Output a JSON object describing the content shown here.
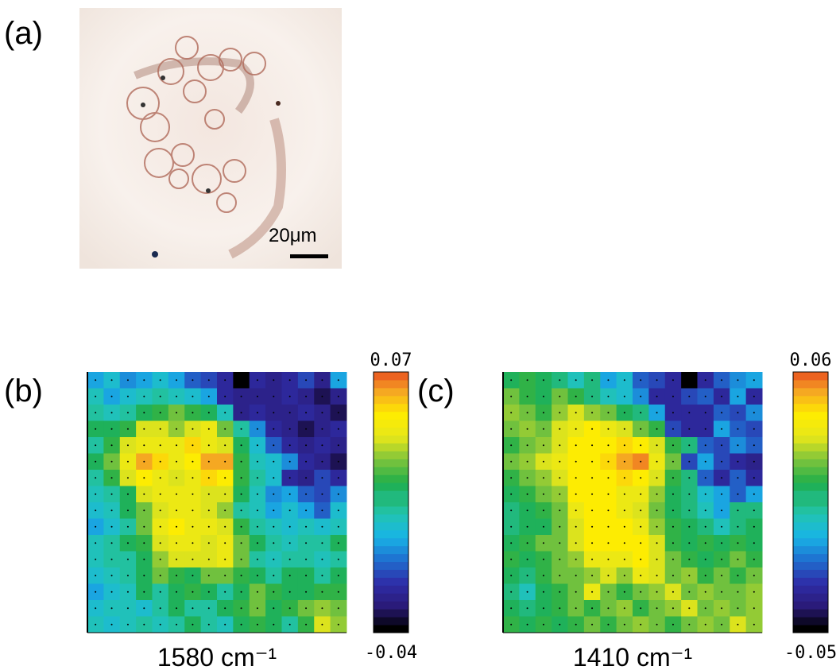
{
  "panel_a": {
    "label": "(a)",
    "scale_bar": "20μm"
  },
  "chart_data": [
    {
      "type": "heatmap",
      "label": "(b)",
      "xlabel": "1580 cm⁻¹",
      "clim": [
        -0.04,
        0.07
      ],
      "cticks": [
        -0.04,
        0.07
      ],
      "colors": [
        "#000000",
        "#2a1a78",
        "#2e2ea8",
        "#1f6fd0",
        "#18b4e6",
        "#22c4b0",
        "#1fae4a",
        "#7cc43c",
        "#e6e61a",
        "#ffec00",
        "#f5a623",
        "#e8401f"
      ],
      "values": [
        [
          0,
          0.005,
          -0.005,
          0,
          0.005,
          0,
          -0.01,
          -0.015,
          -0.02,
          -0.04,
          -0.02,
          -0.025,
          -0.02,
          -0.015,
          -0.025,
          0
        ],
        [
          0.01,
          0,
          0.005,
          0.01,
          0.015,
          0.01,
          0.005,
          0,
          -0.02,
          -0.025,
          -0.025,
          -0.025,
          -0.02,
          -0.025,
          -0.03,
          -0.025
        ],
        [
          0.015,
          0.01,
          0.015,
          0.02,
          0.025,
          0.03,
          0.025,
          0.02,
          0.01,
          -0.025,
          -0.02,
          -0.025,
          -0.025,
          -0.02,
          -0.025,
          -0.03
        ],
        [
          0.02,
          0.02,
          0.025,
          0.04,
          0.04,
          0.035,
          0.04,
          0.045,
          0.03,
          0.015,
          -0.005,
          -0.02,
          -0.025,
          -0.03,
          -0.025,
          -0.02
        ],
        [
          0.015,
          0.025,
          0.04,
          0.045,
          0.045,
          0.045,
          0.055,
          0.045,
          0.04,
          0.02,
          0.005,
          -0.01,
          -0.02,
          -0.025,
          -0.02,
          -0.025
        ],
        [
          0.02,
          0.03,
          0.045,
          0.06,
          0.055,
          0.045,
          0.05,
          0.06,
          0.06,
          0.025,
          0.01,
          0.005,
          -0.005,
          -0.02,
          -0.025,
          -0.03
        ],
        [
          0.015,
          0.025,
          0.04,
          0.05,
          0.045,
          0.04,
          0.045,
          0.055,
          0.05,
          0.025,
          0.015,
          0.005,
          -0.02,
          -0.025,
          -0.015,
          -0.02
        ],
        [
          0.01,
          0.015,
          0.02,
          0.04,
          0.045,
          0.045,
          0.045,
          0.04,
          0.04,
          0.02,
          0.01,
          -0.005,
          0,
          -0.01,
          -0.015,
          -0.005
        ],
        [
          0.005,
          0.01,
          0.02,
          0.03,
          0.04,
          0.045,
          0.045,
          0.04,
          0.035,
          0.015,
          0.01,
          0,
          0.005,
          0,
          -0.01,
          0.005
        ],
        [
          0,
          0.005,
          0.015,
          0.03,
          0.045,
          0.05,
          0.045,
          0.045,
          0.04,
          0.025,
          0.015,
          0.01,
          0.005,
          0.01,
          0.005,
          0.01
        ],
        [
          0.01,
          0.015,
          0.02,
          0.025,
          0.04,
          0.045,
          0.045,
          0.04,
          0.045,
          0.03,
          0.02,
          0.015,
          0.01,
          0.015,
          0.015,
          0.02
        ],
        [
          0.01,
          0.015,
          0.015,
          0.02,
          0.035,
          0.04,
          0.04,
          0.04,
          0.045,
          0.03,
          0.015,
          0.01,
          0.015,
          0.015,
          0.01,
          0.015
        ],
        [
          0.005,
          0.01,
          0.015,
          0.02,
          0.03,
          0.025,
          0.02,
          0.03,
          0.03,
          0.025,
          0.02,
          0.015,
          0.02,
          0.02,
          0.015,
          0.02
        ],
        [
          0,
          0.005,
          0.01,
          0.02,
          0.015,
          0.02,
          0.025,
          0.02,
          0.015,
          0.02,
          0.03,
          0.025,
          0.02,
          0.02,
          0.025,
          0.025
        ],
        [
          0.005,
          0.01,
          0.01,
          0.005,
          0.015,
          0.02,
          0.015,
          0.015,
          0.02,
          0.025,
          0.03,
          0.02,
          0.025,
          0.03,
          0.035,
          0.03
        ],
        [
          0.01,
          0.005,
          0.01,
          0.015,
          0.01,
          0.015,
          0.02,
          0.015,
          0.01,
          0.02,
          0.025,
          0.02,
          0.015,
          0.025,
          0.04,
          0.035
        ]
      ]
    },
    {
      "type": "heatmap",
      "label": "(c)",
      "xlabel": "1410 cm⁻¹",
      "clim": [
        -0.05,
        0.06
      ],
      "cticks": [
        -0.05,
        0.06
      ],
      "colors": [
        "#000000",
        "#2a1a78",
        "#2e2ea8",
        "#1f6fd0",
        "#18b4e6",
        "#22c4b0",
        "#1fae4a",
        "#7cc43c",
        "#e6e61a",
        "#ffec00",
        "#f5a623",
        "#e8401f"
      ],
      "values": [
        [
          0.01,
          0.015,
          0.01,
          0.005,
          0,
          0.005,
          -0.01,
          -0.005,
          -0.02,
          -0.025,
          -0.03,
          -0.05,
          -0.03,
          -0.02,
          -0.015,
          -0.01
        ],
        [
          0.02,
          0.015,
          0.01,
          0.02,
          0.015,
          0.005,
          0,
          -0.005,
          -0.015,
          -0.03,
          -0.03,
          -0.025,
          -0.02,
          -0.03,
          -0.01,
          -0.03
        ],
        [
          0.025,
          0.02,
          0.015,
          0.025,
          0.03,
          0.025,
          0.02,
          0.01,
          0.005,
          -0.01,
          -0.03,
          -0.03,
          -0.03,
          -0.02,
          -0.025,
          -0.015
        ],
        [
          0.02,
          0.025,
          0.02,
          0.03,
          0.035,
          0.04,
          0.035,
          0.03,
          0.02,
          0.015,
          -0.025,
          -0.03,
          -0.03,
          -0.01,
          -0.02,
          -0.025
        ],
        [
          0.015,
          0.02,
          0.025,
          0.03,
          0.04,
          0.04,
          0.04,
          0.045,
          0.04,
          0.03,
          0.015,
          0.005,
          -0.02,
          -0.025,
          -0.015,
          -0.02
        ],
        [
          0.02,
          0.025,
          0.03,
          0.035,
          0.04,
          0.04,
          0.045,
          0.05,
          0.055,
          0.035,
          0.02,
          -0.025,
          -0.01,
          -0.025,
          -0.03,
          -0.035
        ],
        [
          0.015,
          0.02,
          0.025,
          0.03,
          0.04,
          0.04,
          0.04,
          0.045,
          0.04,
          0.03,
          0.015,
          0.005,
          -0.02,
          -0.03,
          -0.02,
          -0.03
        ],
        [
          0.01,
          0.015,
          0.02,
          0.025,
          0.04,
          0.04,
          0.04,
          0.035,
          0.035,
          0.025,
          0.01,
          0.005,
          -0.005,
          -0.01,
          -0.02,
          -0.01
        ],
        [
          0.005,
          0.01,
          0.015,
          0.02,
          0.035,
          0.04,
          0.04,
          0.035,
          0.03,
          0.02,
          0.01,
          0.005,
          0,
          -0.01,
          0.005,
          0.005
        ],
        [
          0.005,
          0.01,
          0.01,
          0.02,
          0.03,
          0.04,
          0.04,
          0.04,
          0.035,
          0.025,
          0.015,
          0.01,
          0.005,
          0,
          0.005,
          0.01
        ],
        [
          0.01,
          0.015,
          0.02,
          0.02,
          0.03,
          0.04,
          0.04,
          0.04,
          0.04,
          0.03,
          0.015,
          0.01,
          0.015,
          0.01,
          0.015,
          0.01
        ],
        [
          0.015,
          0.01,
          0.015,
          0.02,
          0.025,
          0.035,
          0.035,
          0.035,
          0.04,
          0.03,
          0.02,
          0.015,
          0.01,
          0.015,
          0.02,
          0.015
        ],
        [
          0.01,
          0.005,
          0.015,
          0.02,
          0.02,
          0.025,
          0.03,
          0.025,
          0.035,
          0.03,
          0.02,
          0.025,
          0.015,
          0.02,
          0.015,
          0.02
        ],
        [
          0.005,
          0,
          0.01,
          0.015,
          0.02,
          0.035,
          0.02,
          0.015,
          0.02,
          0.025,
          0.03,
          0.02,
          0.025,
          0.02,
          0.02,
          0.025
        ],
        [
          0.01,
          0.005,
          0.01,
          0.015,
          0.02,
          0.015,
          0.02,
          0.025,
          0.015,
          0.02,
          0.025,
          0.03,
          0.02,
          0.025,
          0.02,
          0.025
        ],
        [
          0.015,
          0.01,
          0.015,
          0.01,
          0.015,
          0.02,
          0.015,
          0.02,
          0.025,
          0.02,
          0.015,
          0.02,
          0.025,
          0.02,
          0.03,
          0.025
        ]
      ]
    }
  ]
}
